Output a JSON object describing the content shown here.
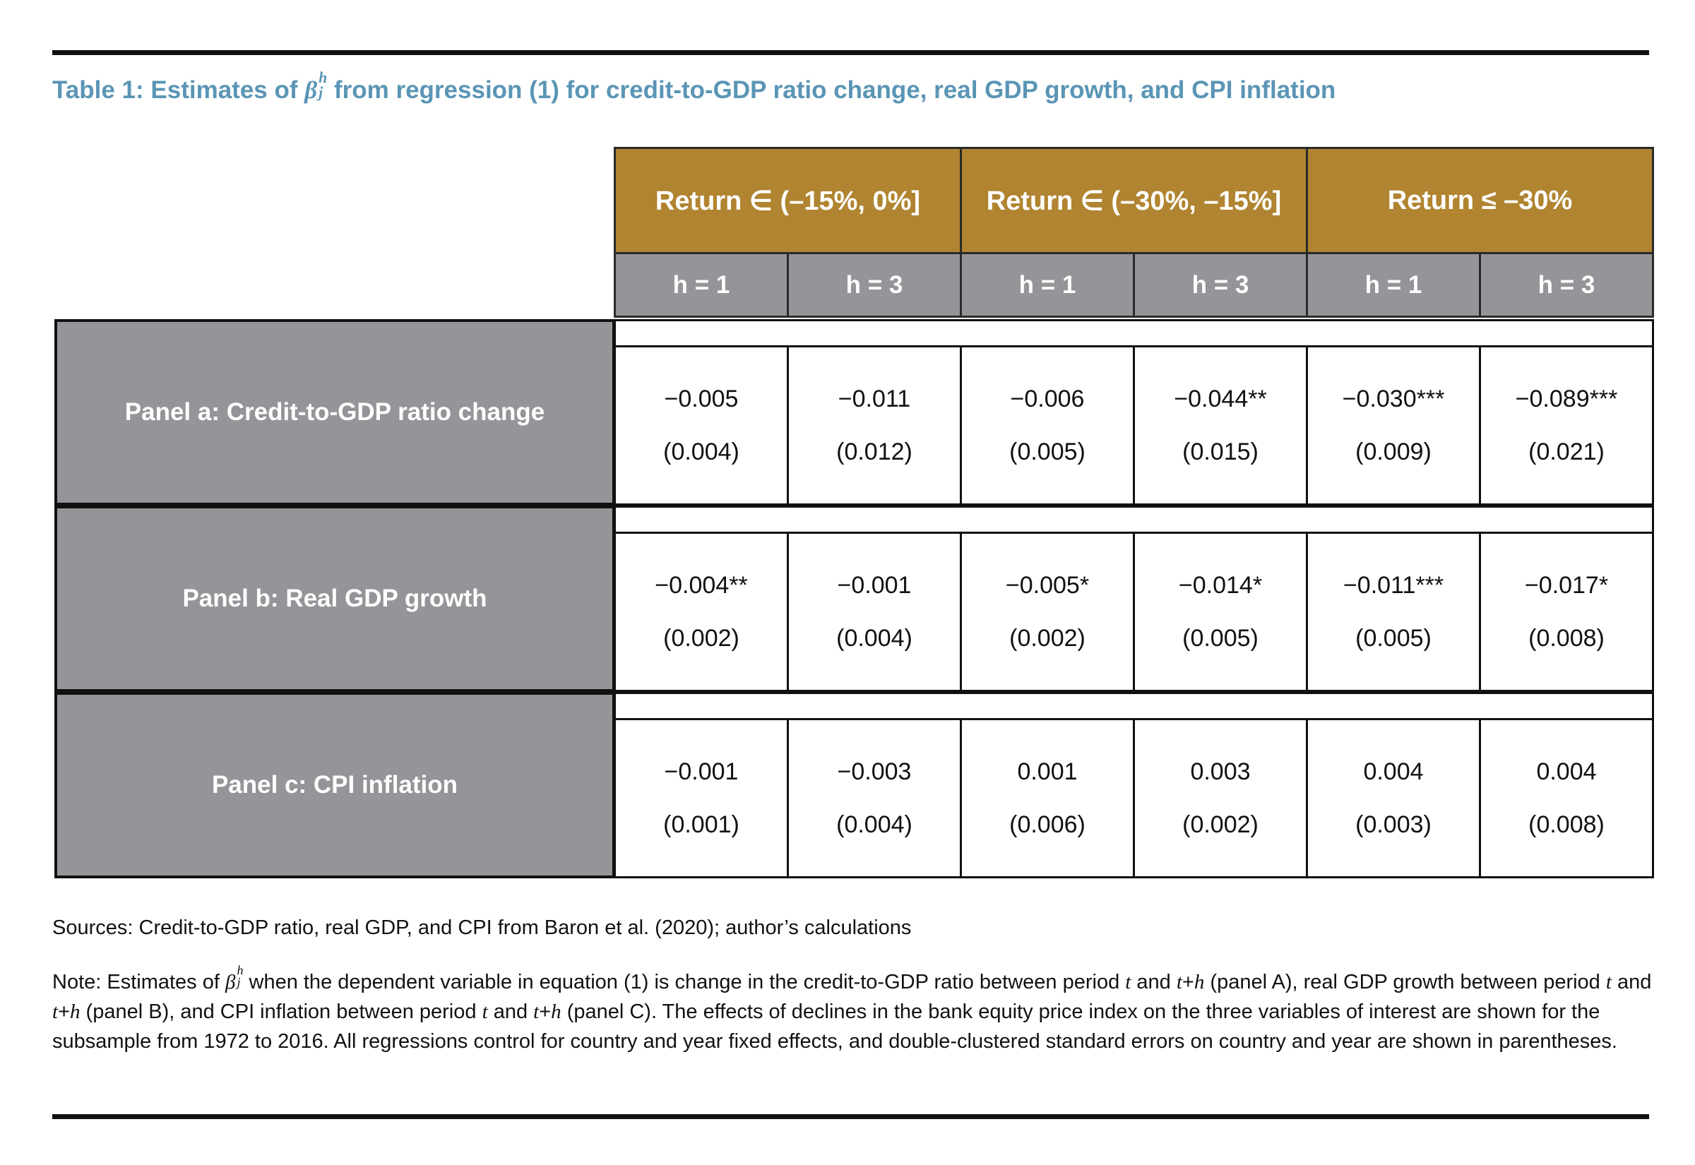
{
  "title": {
    "prefix": "Table 1: Estimates of ",
    "symbol": "β",
    "sup": "h",
    "sub": "j",
    "suffix": " from regression (1) for credit-to-GDP ratio change, real GDP growth, and CPI inflation"
  },
  "table": {
    "groups": [
      "Return ∈ (–15%, 0%]",
      "Return ∈ (–30%, –15%]",
      "Return ≤ –30%"
    ],
    "horizons": [
      "h = 1",
      "h = 3",
      "h = 1",
      "h = 3",
      "h = 1",
      "h = 3"
    ],
    "rows": [
      {
        "label": "Panel a: Credit-to-GDP ratio change",
        "estimates": [
          "−0.005",
          "−0.011",
          "−0.006",
          "−0.044**",
          "−0.030***",
          "−0.089***"
        ],
        "std_errors": [
          "(0.004)",
          "(0.012)",
          "(0.005)",
          "(0.015)",
          "(0.009)",
          "(0.021)"
        ]
      },
      {
        "label": "Panel b: Real GDP growth",
        "estimates": [
          "−0.004**",
          "−0.001",
          "−0.005*",
          "−0.014*",
          "−0.011***",
          "−0.017*"
        ],
        "std_errors": [
          "(0.002)",
          "(0.004)",
          "(0.002)",
          "(0.005)",
          "(0.005)",
          "(0.008)"
        ]
      },
      {
        "label": "Panel c: CPI inflation",
        "estimates": [
          "−0.001",
          "−0.003",
          "0.001",
          "0.003",
          "0.004",
          "0.004"
        ],
        "std_errors": [
          "(0.001)",
          "(0.004)",
          "(0.006)",
          "(0.002)",
          "(0.003)",
          "(0.008)"
        ]
      }
    ]
  },
  "sources": "Sources: Credit-to-GDP ratio, real GDP, and CPI from Baron et al. (2020); author’s calculations",
  "note": {
    "parts": [
      "Note: Estimates of ",
      "β",
      "h",
      "j",
      " when the dependent variable in equation (1) is change in the credit-to-GDP ratio between period ",
      "t",
      " and ",
      "t",
      "+",
      "h",
      " (panel A), real GDP growth between period ",
      "t",
      " and ",
      "t",
      "+",
      "h",
      " (panel B), and CPI inflation between period ",
      "t",
      " and ",
      "t",
      "+",
      "h",
      " (panel C). The effects of declines in the bank equity price index on the three variables of interest are shown for the subsample from 1972 to 2016. All regressions control for country and year fixed effects, and double-clustered standard errors on country and year are shown in parentheses."
    ]
  }
}
